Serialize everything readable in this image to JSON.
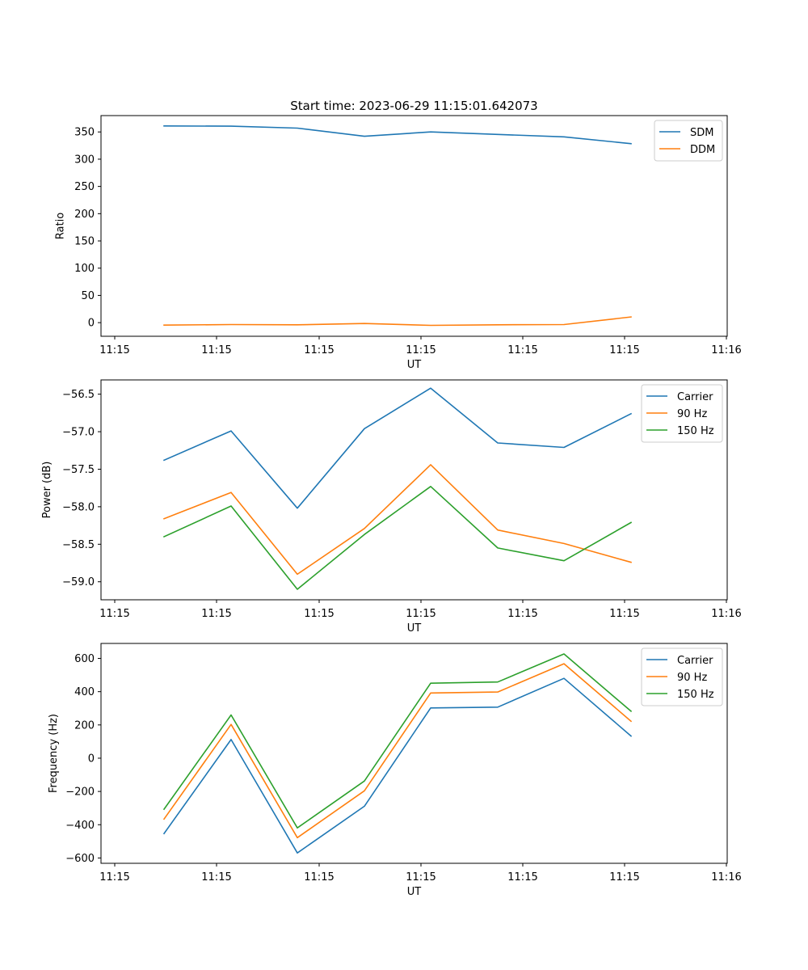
{
  "title": "Start time: 2023-06-29 11:15:01.642073",
  "x_tick_labels": [
    "11:15",
    "11:15",
    "11:15",
    "11:15",
    "11:15",
    "11:15",
    "11:16"
  ],
  "chart_data": [
    {
      "type": "line",
      "xlabel": "UT",
      "ylabel": "Ratio",
      "ylim": [
        -25,
        380
      ],
      "yticks": [
        0,
        50,
        100,
        150,
        200,
        250,
        300,
        350
      ],
      "ytick_labels": [
        "0",
        "50",
        "100",
        "150",
        "200",
        "250",
        "300",
        "350"
      ],
      "legend_position": "top-right",
      "series": [
        {
          "name": "SDM",
          "color": "#1f77b4",
          "values": [
            361,
            360.5,
            357,
            342,
            350,
            345.5,
            341,
            328.5
          ]
        },
        {
          "name": "DDM",
          "color": "#ff7f0e",
          "values": [
            -4.5,
            -3.5,
            -4,
            -1.5,
            -5,
            -4,
            -3.5,
            10.5
          ]
        }
      ]
    },
    {
      "type": "line",
      "xlabel": "UT",
      "ylabel": "Power (dB)",
      "ylim": [
        -59.24,
        -56.31
      ],
      "yticks": [
        -59.0,
        -58.5,
        -58.0,
        -57.5,
        -57.0,
        -56.5
      ],
      "ytick_labels": [
        "−59.0",
        "−58.5",
        "−58.0",
        "−57.5",
        "−57.0",
        "−56.5"
      ],
      "legend_position": "top-right",
      "series": [
        {
          "name": "Carrier",
          "color": "#1f77b4",
          "values": [
            -57.38,
            -56.99,
            -58.02,
            -56.96,
            -56.42,
            -57.15,
            -57.21,
            -56.76
          ]
        },
        {
          "name": "90 Hz",
          "color": "#ff7f0e",
          "values": [
            -58.16,
            -57.81,
            -58.9,
            -58.29,
            -57.44,
            -58.31,
            -58.49,
            -58.74
          ]
        },
        {
          "name": "150 Hz",
          "color": "#2ca02c",
          "values": [
            -58.4,
            -57.99,
            -59.1,
            -58.37,
            -57.73,
            -58.55,
            -58.72,
            -58.21
          ]
        }
      ]
    },
    {
      "type": "line",
      "xlabel": "UT",
      "ylabel": "Frequency (Hz)",
      "ylim": [
        -632,
        690
      ],
      "yticks": [
        -600,
        -400,
        -200,
        0,
        200,
        400,
        600
      ],
      "ytick_labels": [
        "−600",
        "−400",
        "−200",
        "0",
        "200",
        "400",
        "600"
      ],
      "legend_position": "top-right",
      "series": [
        {
          "name": "Carrier",
          "color": "#1f77b4",
          "values": [
            -453,
            112,
            -570,
            -289,
            302,
            307,
            480,
            133
          ]
        },
        {
          "name": "90 Hz",
          "color": "#ff7f0e",
          "values": [
            -366,
            203,
            -478,
            -196,
            392,
            398,
            568,
            222
          ]
        },
        {
          "name": "150 Hz",
          "color": "#2ca02c",
          "values": [
            -307,
            260,
            -419,
            -137,
            451,
            458,
            627,
            282
          ]
        }
      ]
    }
  ]
}
